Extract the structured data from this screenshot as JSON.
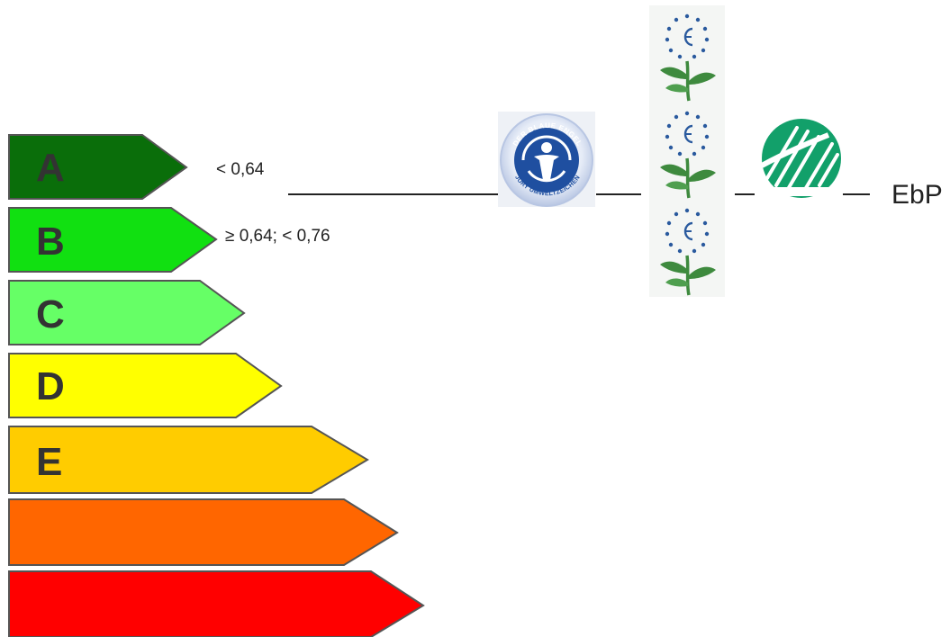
{
  "energy_classes": [
    {
      "letter": "A",
      "color": "#0a6e0a"
    },
    {
      "letter": "B",
      "color": "#11e011"
    },
    {
      "letter": "C",
      "color": "#66ff66"
    },
    {
      "letter": "D",
      "color": "#ffff00"
    },
    {
      "letter": "E",
      "color": "#ffcc00"
    },
    {
      "letter": "",
      "color": "#ff6600"
    },
    {
      "letter": "",
      "color": "#ff0000"
    }
  ],
  "thresholds": {
    "a": "< 0,64",
    "b": "≥ 0,64; < 0,76"
  },
  "labels": {
    "blauer_engel_top": "DER BLAUE ENGEL",
    "blauer_engel_bottom": "JURY UMWELTZEICHEN",
    "ebp": "EbP"
  },
  "icons": [
    "blauer-engel-logo",
    "eu-ecolabel-flower",
    "nordic-swan-logo"
  ],
  "colors": {
    "bar_outline": "#555555",
    "angel_blue": "#1f4fa0",
    "flower_green": "#3e8a3e",
    "swan_green": "#12a06a"
  }
}
